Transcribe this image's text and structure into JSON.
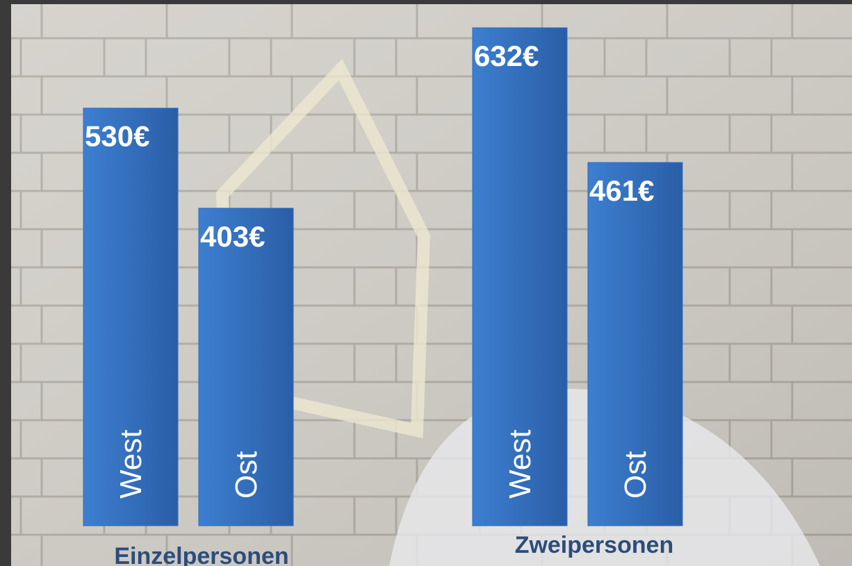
{
  "chart_data": {
    "type": "bar",
    "categories": [
      "Einzelpersonen",
      "Zweipersonen"
    ],
    "series": [
      {
        "name": "West",
        "values": [
          530,
          632
        ],
        "value_labels": [
          "530€",
          "632€"
        ]
      },
      {
        "name": "Ost",
        "values": [
          403,
          461
        ],
        "value_labels": [
          "403€",
          "461€"
        ]
      }
    ],
    "color": "#2f6bbf"
  }
}
